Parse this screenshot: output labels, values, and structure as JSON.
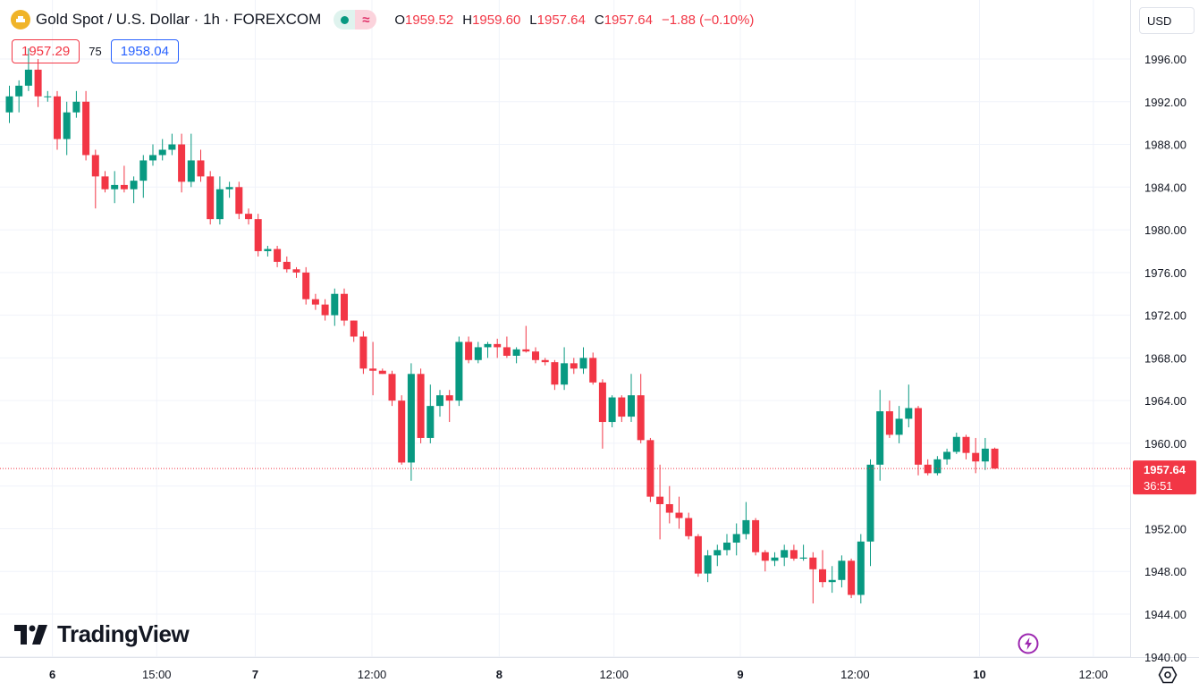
{
  "header": {
    "symbol_title": "Gold Spot / U.S. Dollar · 1h · FOREXCOM",
    "ohlc": [
      {
        "label": "O",
        "value": "1959.52"
      },
      {
        "label": "H",
        "value": "1959.60"
      },
      {
        "label": "L",
        "value": "1957.64"
      },
      {
        "label": "C",
        "value": "1957.64"
      }
    ],
    "change": "−1.88 (−0.10%)",
    "status_wave": "≈"
  },
  "quotes": {
    "bid": "1957.29",
    "spread": "75",
    "ask": "1958.04"
  },
  "currency": {
    "label": "USD"
  },
  "branding": {
    "text": "TradingView"
  },
  "colors": {
    "up": "#089981",
    "down": "#f23645",
    "grid": "#f0f3fa",
    "axis_text": "#131722"
  },
  "icons": [
    "gold-coin-icon",
    "market-open-dot-icon",
    "chevron-down-icon",
    "tradingview-logo-icon",
    "flash-icon",
    "settings-icon"
  ],
  "chart_data": {
    "type": "candlestick",
    "y_ticks": [
      "1940.00",
      "1944.00",
      "1948.00",
      "1952.00",
      "1956.00",
      "1960.00",
      "1964.00",
      "1968.00",
      "1972.00",
      "1976.00",
      "1980.00",
      "1984.00",
      "1988.00",
      "1992.00",
      "1996.00"
    ],
    "ylim": [
      1940,
      1998
    ],
    "x_ticks": [
      {
        "label": "6",
        "index": 4.5,
        "bold": true
      },
      {
        "label": "15:00",
        "index": 15.4,
        "bold": false
      },
      {
        "label": "7",
        "index": 25.7,
        "bold": true
      },
      {
        "label": "12:00",
        "index": 37.9,
        "bold": false
      },
      {
        "label": "8",
        "index": 51.2,
        "bold": true
      },
      {
        "label": "12:00",
        "index": 63.2,
        "bold": false
      },
      {
        "label": "9",
        "index": 76.4,
        "bold": true
      },
      {
        "label": "12:00",
        "index": 88.4,
        "bold": false
      },
      {
        "label": "10",
        "index": 101.4,
        "bold": true
      },
      {
        "label": "12:00",
        "index": 113.3,
        "bold": false
      }
    ],
    "last_price": {
      "value": 1957.64,
      "label": "1957.64",
      "countdown": "36:51"
    },
    "candles": [
      [
        1991.0,
        1993.5,
        1990.0,
        1992.5
      ],
      [
        1992.5,
        1994.0,
        1991.0,
        1993.5
      ],
      [
        1993.5,
        1997.0,
        1993.0,
        1995.0
      ],
      [
        1995.0,
        1996.0,
        1991.5,
        1992.5
      ],
      [
        1992.5,
        1993.0,
        1992.0,
        1992.5
      ],
      [
        1992.5,
        1993.0,
        1987.5,
        1988.5
      ],
      [
        1988.5,
        1992.0,
        1987.0,
        1991.0
      ],
      [
        1991.0,
        1993.0,
        1990.5,
        1992.0
      ],
      [
        1992.0,
        1993.0,
        1986.5,
        1987.0
      ],
      [
        1987.0,
        1987.5,
        1982.0,
        1985.0
      ],
      [
        1985.0,
        1985.5,
        1983.5,
        1983.8
      ],
      [
        1983.8,
        1985.5,
        1982.5,
        1984.2
      ],
      [
        1984.2,
        1986.0,
        1983.5,
        1983.8
      ],
      [
        1983.8,
        1985.0,
        1982.5,
        1984.6
      ],
      [
        1984.6,
        1987.0,
        1983.0,
        1986.5
      ],
      [
        1986.5,
        1988.0,
        1986.0,
        1987.0
      ],
      [
        1987.0,
        1988.5,
        1986.5,
        1987.5
      ],
      [
        1987.5,
        1989.0,
        1987.0,
        1988.0
      ],
      [
        1988.0,
        1989.0,
        1983.5,
        1984.5
      ],
      [
        1984.5,
        1989.0,
        1984.0,
        1986.5
      ],
      [
        1986.5,
        1987.5,
        1984.5,
        1985.0
      ],
      [
        1985.0,
        1985.5,
        1980.5,
        1981.0
      ],
      [
        1981.0,
        1985.0,
        1980.5,
        1983.8
      ],
      [
        1983.8,
        1984.5,
        1983.0,
        1984.0
      ],
      [
        1984.0,
        1984.5,
        1981.0,
        1981.5
      ],
      [
        1981.5,
        1982.0,
        1980.5,
        1981.0
      ],
      [
        1981.0,
        1981.5,
        1977.5,
        1978.0
      ],
      [
        1978.0,
        1978.5,
        1977.5,
        1978.2
      ],
      [
        1978.2,
        1978.5,
        1976.5,
        1977.0
      ],
      [
        1977.0,
        1977.5,
        1976.0,
        1976.3
      ],
      [
        1976.3,
        1976.5,
        1975.5,
        1976.0
      ],
      [
        1976.0,
        1976.5,
        1973.0,
        1973.5
      ],
      [
        1973.5,
        1974.0,
        1972.5,
        1973.0
      ],
      [
        1973.0,
        1973.5,
        1971.5,
        1972.0
      ],
      [
        1972.0,
        1974.5,
        1971.0,
        1974.0
      ],
      [
        1974.0,
        1974.5,
        1971.0,
        1971.5
      ],
      [
        1971.5,
        1971.5,
        1969.5,
        1970.0
      ],
      [
        1970.0,
        1970.5,
        1966.5,
        1967.0
      ],
      [
        1967.0,
        1969.5,
        1964.5,
        1966.8
      ],
      [
        1966.8,
        1967.0,
        1966.5,
        1966.5
      ],
      [
        1966.5,
        1966.8,
        1963.5,
        1964.0
      ],
      [
        1964.0,
        1964.5,
        1958.0,
        1958.2
      ],
      [
        1958.2,
        1967.5,
        1956.5,
        1966.5
      ],
      [
        1966.5,
        1967.0,
        1960.0,
        1960.5
      ],
      [
        1960.5,
        1965.5,
        1960.0,
        1963.5
      ],
      [
        1963.5,
        1965.0,
        1962.5,
        1964.5
      ],
      [
        1964.5,
        1965.0,
        1962.0,
        1964.0
      ],
      [
        1964.0,
        1970.0,
        1963.5,
        1969.5
      ],
      [
        1969.5,
        1970.0,
        1967.5,
        1967.8
      ],
      [
        1967.8,
        1969.5,
        1967.5,
        1969.0
      ],
      [
        1969.0,
        1969.5,
        1968.0,
        1969.3
      ],
      [
        1969.3,
        1969.8,
        1968.0,
        1969.0
      ],
      [
        1969.0,
        1970.0,
        1968.0,
        1968.2
      ],
      [
        1968.2,
        1969.0,
        1967.5,
        1968.8
      ],
      [
        1968.8,
        1971.0,
        1968.5,
        1968.6
      ],
      [
        1968.6,
        1969.0,
        1967.5,
        1967.8
      ],
      [
        1967.8,
        1968.0,
        1967.3,
        1967.6
      ],
      [
        1967.6,
        1967.8,
        1965.0,
        1965.5
      ],
      [
        1965.5,
        1969.0,
        1965.0,
        1967.5
      ],
      [
        1967.5,
        1968.0,
        1966.5,
        1967.0
      ],
      [
        1967.0,
        1969.0,
        1966.5,
        1968.0
      ],
      [
        1968.0,
        1968.5,
        1965.5,
        1965.7
      ],
      [
        1965.7,
        1966.0,
        1959.5,
        1962.0
      ],
      [
        1962.0,
        1964.5,
        1961.5,
        1964.3
      ],
      [
        1964.3,
        1964.5,
        1962.0,
        1962.5
      ],
      [
        1962.5,
        1966.5,
        1962.0,
        1964.5
      ],
      [
        1964.5,
        1966.5,
        1960.0,
        1960.3
      ],
      [
        1960.3,
        1960.5,
        1954.5,
        1955.0
      ],
      [
        1955.0,
        1958.0,
        1951.0,
        1954.3
      ],
      [
        1954.3,
        1956.0,
        1952.5,
        1953.5
      ],
      [
        1953.5,
        1955.0,
        1952.0,
        1953.0
      ],
      [
        1953.0,
        1953.5,
        1951.0,
        1951.3
      ],
      [
        1951.3,
        1951.5,
        1947.5,
        1947.8
      ],
      [
        1947.8,
        1950.0,
        1947.0,
        1949.5
      ],
      [
        1949.5,
        1950.5,
        1948.5,
        1950.0
      ],
      [
        1950.0,
        1951.5,
        1949.5,
        1950.7
      ],
      [
        1950.7,
        1952.5,
        1949.5,
        1951.5
      ],
      [
        1951.5,
        1954.5,
        1951.0,
        1952.8
      ],
      [
        1952.8,
        1953.0,
        1949.5,
        1949.8
      ],
      [
        1949.8,
        1950.0,
        1948.0,
        1949.0
      ],
      [
        1949.0,
        1949.8,
        1948.5,
        1949.3
      ],
      [
        1949.3,
        1950.5,
        1948.5,
        1950.0
      ],
      [
        1950.0,
        1950.5,
        1949.0,
        1949.2
      ],
      [
        1949.2,
        1950.5,
        1949.0,
        1949.3
      ],
      [
        1949.3,
        1949.8,
        1945.0,
        1948.2
      ],
      [
        1948.2,
        1950.0,
        1946.5,
        1947.0
      ],
      [
        1947.0,
        1948.5,
        1946.0,
        1947.2
      ],
      [
        1947.2,
        1949.5,
        1946.5,
        1949.0
      ],
      [
        1949.0,
        1949.2,
        1945.5,
        1945.8
      ],
      [
        1945.8,
        1951.5,
        1945.0,
        1950.8
      ],
      [
        1950.8,
        1958.5,
        1948.5,
        1958.0
      ],
      [
        1958.0,
        1965.0,
        1956.5,
        1963.0
      ],
      [
        1963.0,
        1964.0,
        1960.5,
        1960.8
      ],
      [
        1960.8,
        1963.5,
        1960.0,
        1962.3
      ],
      [
        1962.3,
        1965.5,
        1961.5,
        1963.3
      ],
      [
        1963.3,
        1963.5,
        1957.0,
        1958.0
      ],
      [
        1958.0,
        1958.5,
        1957.0,
        1957.2
      ],
      [
        1957.2,
        1958.8,
        1957.0,
        1958.5
      ],
      [
        1958.5,
        1959.5,
        1958.0,
        1959.2
      ],
      [
        1959.2,
        1961.0,
        1959.0,
        1960.6
      ],
      [
        1960.6,
        1960.8,
        1958.5,
        1959.1
      ],
      [
        1959.1,
        1960.5,
        1957.2,
        1958.3
      ],
      [
        1958.3,
        1960.5,
        1957.5,
        1959.5
      ],
      [
        1959.5,
        1959.6,
        1957.6,
        1957.64
      ]
    ]
  }
}
